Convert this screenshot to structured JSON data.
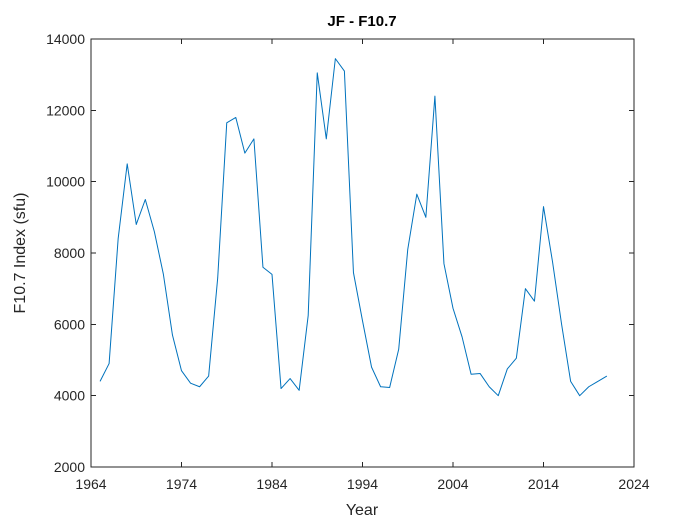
{
  "chart_data": {
    "type": "line",
    "title": "JF - F10.7",
    "xlabel": "Year",
    "ylabel": "F10.7 Index (sfu)",
    "xlim": [
      1964,
      2024
    ],
    "ylim": [
      2000,
      14000
    ],
    "xticks": [
      "1964",
      "1974",
      "1984",
      "1994",
      "2004",
      "2014",
      "2024"
    ],
    "yticks": [
      "2000",
      "4000",
      "6000",
      "8000",
      "10000",
      "12000",
      "14000"
    ],
    "grid": false,
    "line_color": "#0072BD",
    "axis_color": "#262626",
    "series": [
      {
        "x": [
          1965,
          1966,
          1967,
          1968,
          1969,
          1970,
          1971,
          1972,
          1973,
          1974,
          1975,
          1976,
          1977,
          1978,
          1979,
          1980,
          1981,
          1982,
          1983,
          1984,
          1985,
          1986,
          1987,
          1988,
          1989,
          1990,
          1991,
          1992,
          1993,
          1994,
          1995,
          1996,
          1997,
          1998,
          1999,
          2000,
          2001,
          2002,
          2003,
          2004,
          2005,
          2006,
          2007,
          2008,
          2009,
          2010,
          2011,
          2012,
          2013,
          2014,
          2015,
          2016,
          2017,
          2018,
          2019,
          2020,
          2021
        ],
        "values": [
          4400,
          4900,
          8400,
          10500,
          8800,
          9500,
          8600,
          7400,
          5700,
          4700,
          4350,
          4250,
          4550,
          7300,
          11650,
          11800,
          10800,
          11200,
          7600,
          7400,
          4200,
          4480,
          4150,
          6250,
          13050,
          11200,
          13450,
          13100,
          7450,
          6100,
          4800,
          4250,
          4230,
          5300,
          8100,
          9650,
          9000,
          12400,
          7700,
          6450,
          5650,
          4600,
          4620,
          4250,
          4000,
          4750,
          5050,
          7000,
          6650,
          9300,
          7750,
          6000,
          4400,
          4000,
          4250,
          4400,
          4550
        ]
      }
    ]
  }
}
